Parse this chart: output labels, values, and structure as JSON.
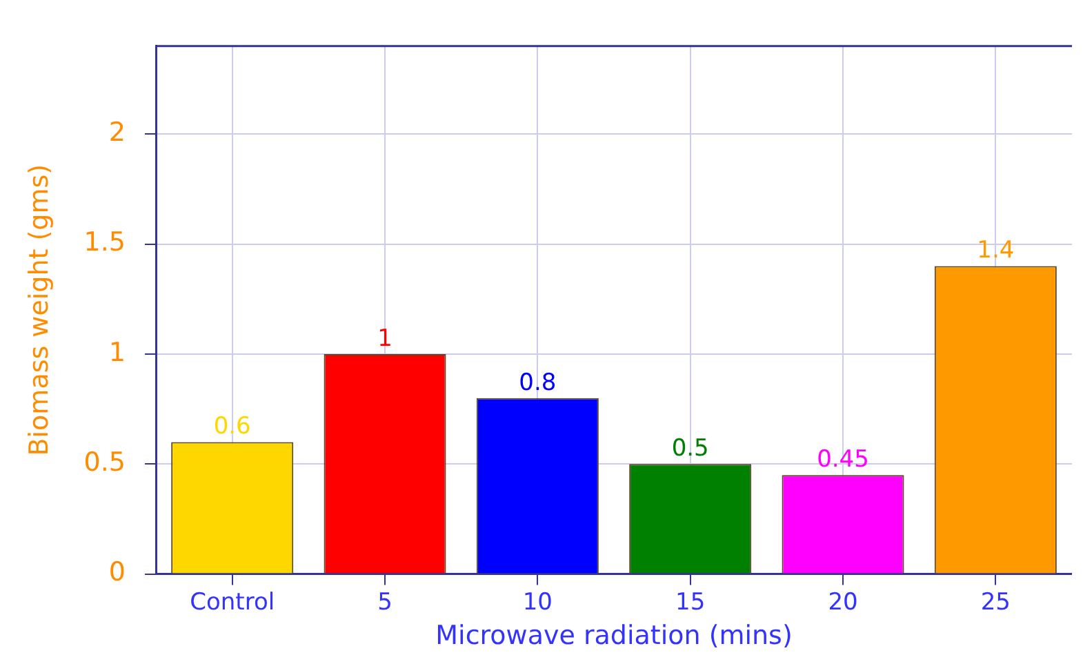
{
  "chart_data": {
    "type": "bar",
    "xlabel": "Microwave radiation (mins)",
    "ylabel": "Biomass weight (gms)",
    "categories": [
      "Control",
      "5",
      "10",
      "15",
      "20",
      "25"
    ],
    "values": [
      0.6,
      1,
      0.8,
      0.5,
      0.45,
      1.4
    ],
    "colors": [
      "#ffd700",
      "#ff0000",
      "#0000ff",
      "#008000",
      "#ff00ff",
      "#ff9900"
    ],
    "ylim": [
      0,
      2.4
    ],
    "yticks": [
      0,
      0.5,
      1,
      1.5,
      2
    ],
    "grid": true,
    "data_labels": true
  }
}
